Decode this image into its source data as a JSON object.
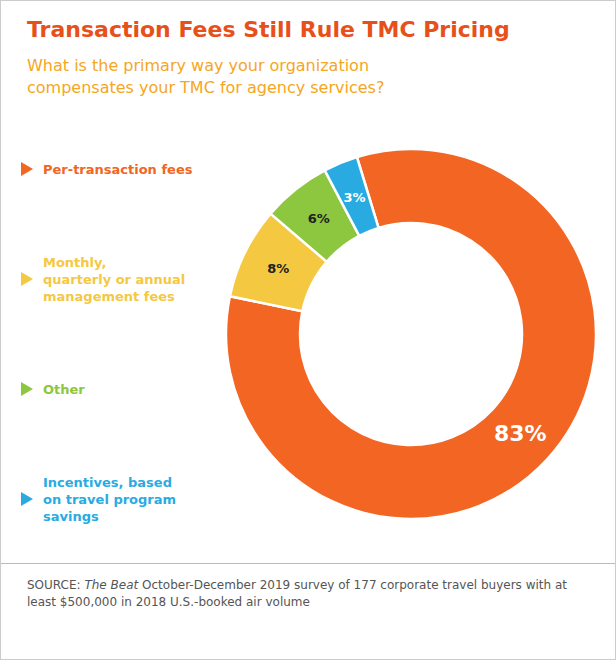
{
  "chart_data": {
    "type": "donut",
    "title": "Transaction Fees Still Rule TMC Pricing",
    "subtitle": "What is the primary way your organization\ncompensates your TMC for agency services?",
    "categories": [
      "Per-transaction fees",
      "Monthly,\nquarterly or annual\nmanagement fees",
      "Other",
      "Incentives, based\non travel program\nsavings"
    ],
    "values": [
      83,
      8,
      6,
      3
    ],
    "value_labels": [
      "83%",
      "8%",
      "6%",
      "3%"
    ],
    "colors": [
      "#F26522",
      "#F5C842",
      "#8DC63F",
      "#29ABE2"
    ],
    "data_labels": true,
    "legend": "left",
    "source": [
      "SOURCE:",
      "The Beat",
      "October-December 2019 survey of 177 corporate travel buyers with at least $500,000 in 2018 U.S.-booked air volume"
    ]
  }
}
